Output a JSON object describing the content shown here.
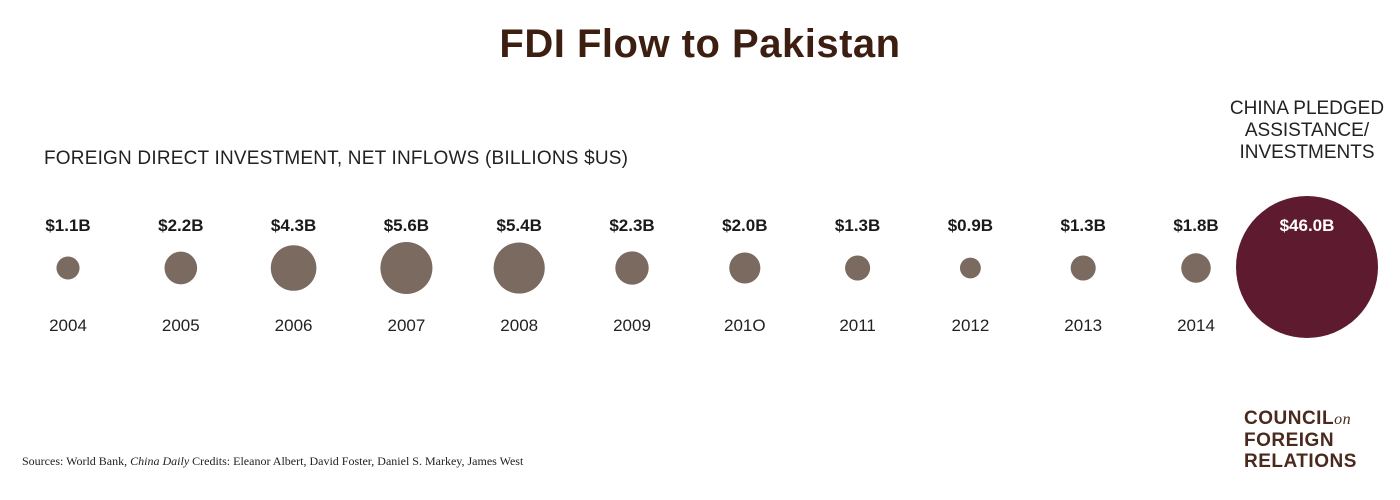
{
  "title": "FDI Flow to Pakistan",
  "subtitle": "FOREIGN DIRECT INVESTMENT, NET INFLOWS (BILLIONS $US)",
  "china": {
    "label_lines": [
      "CHINA PLEDGED",
      "ASSISTANCE/",
      "INVESTMENTS"
    ],
    "value": 46.0,
    "value_label": "$46.0B"
  },
  "chart_data": {
    "type": "bubble",
    "title": "FDI Flow to Pakistan",
    "unit": "billions $US",
    "categories": [
      "2004",
      "2005",
      "2006",
      "2007",
      "2008",
      "2009",
      "201O",
      "2011",
      "2012",
      "2013",
      "2014"
    ],
    "values": [
      1.1,
      2.2,
      4.3,
      5.6,
      5.4,
      2.3,
      2.0,
      1.3,
      0.9,
      1.3,
      1.8
    ],
    "value_labels": [
      "$1.1B",
      "$2.2B",
      "$4.3B",
      "$5.6B",
      "$5.4B",
      "$2.3B",
      "$2.0B",
      "$1.3B",
      "$0.9B",
      "$1.3B",
      "$1.8B"
    ],
    "colors": {
      "fdi": "#7a6a60",
      "china": "#5e1a2e"
    }
  },
  "sources": {
    "prefix": "Sources:  World Bank, ",
    "italic": "China Daily",
    "credits": "  Credits: Eleanor Albert, David Foster, Daniel S. Markey, James West"
  },
  "logo": {
    "line1": "COUNCIL",
    "on": "on",
    "line2": "FOREIGN",
    "line3": "RELATIONS"
  }
}
